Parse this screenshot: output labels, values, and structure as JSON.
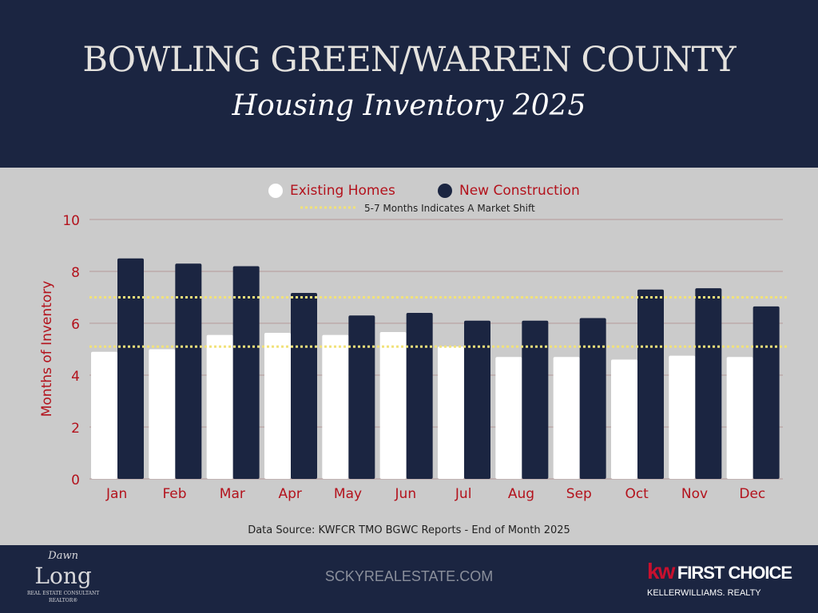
{
  "header": {
    "title": "BOWLING GREEN/WARREN COUNTY",
    "subtitle": "Housing Inventory 2025"
  },
  "chart_data": {
    "type": "bar",
    "ylabel": "Months of Inventory",
    "ylim": [
      0,
      10
    ],
    "yticks": [
      0,
      2,
      4,
      6,
      8,
      10
    ],
    "grid": true,
    "legend_position": "top-center",
    "categories": [
      "Jan",
      "Feb",
      "Mar",
      "Apr",
      "May",
      "Jun",
      "Jul",
      "Aug",
      "Sep",
      "Oct",
      "Nov",
      "Dec"
    ],
    "series": [
      {
        "name": "Existing Homes",
        "color": "#ffffff",
        "values": [
          4.9,
          5.0,
          5.55,
          5.63,
          5.55,
          5.66,
          5.1,
          4.7,
          4.7,
          4.6,
          4.75,
          4.7
        ]
      },
      {
        "name": "New Construction",
        "color": "#1b2541",
        "values": [
          8.5,
          8.3,
          8.2,
          7.17,
          6.3,
          6.4,
          6.1,
          6.1,
          6.2,
          7.3,
          7.35,
          6.65
        ]
      }
    ],
    "reference_lines": {
      "label": "5-7 Months Indicates A Market Shift",
      "values": [
        5.1,
        7.0
      ],
      "color": "#f1e27a"
    },
    "label_color": "#b3121c"
  },
  "footer": {
    "source": "Data Source: KWFCR TMO BGWC Reports - End of Month 2025",
    "website": "SCKYREALESTATE.COM",
    "left_logo": {
      "line1": "Dawn",
      "line2": "Long",
      "line3": "REAL ESTATE CONSULTANT",
      "line4": "REALTOR®"
    },
    "right_logo": {
      "kw": "kw",
      "name": "FIRST CHOICE",
      "brand": "KELLERWILLIAMS. REALTY"
    }
  }
}
